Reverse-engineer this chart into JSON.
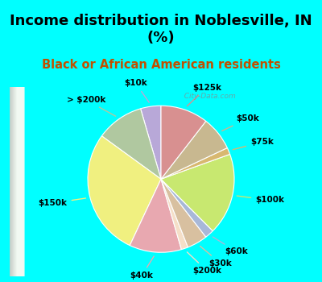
{
  "title": "Income distribution in Noblesville, IN\n(%)",
  "subtitle": "Black or African American residents",
  "background_color": "#00FFFF",
  "labels": [
    "$10k",
    "> $200k",
    "$150k",
    "$40k",
    "$200k",
    "$30k",
    "$60k",
    "$100k",
    "$75k",
    "$50k",
    "$125k"
  ],
  "sizes": [
    4.5,
    10.5,
    28.0,
    11.5,
    1.5,
    4.5,
    2.0,
    18.0,
    1.5,
    7.5,
    10.5
  ],
  "colors": [
    "#b8a8d8",
    "#b0c8a0",
    "#f0f080",
    "#e8a8b0",
    "#f5dfc8",
    "#d8c0a0",
    "#a8b8d8",
    "#c8e870",
    "#d8b870",
    "#c8b890",
    "#d89090"
  ],
  "startangle": 90,
  "label_fontsize": 7.5,
  "title_fontsize": 13,
  "subtitle_fontsize": 10.5,
  "title_color": "#000000",
  "subtitle_color": "#c05000",
  "watermark": "  City-Data.com"
}
